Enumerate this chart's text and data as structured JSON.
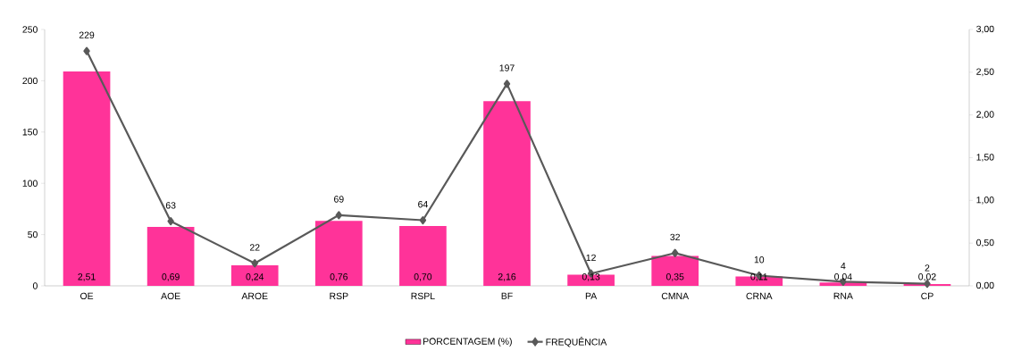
{
  "chart_data": {
    "type": "bar",
    "categories": [
      "OE",
      "AOE",
      "AROE",
      "RSP",
      "RSPL",
      "BF",
      "PA",
      "CMNA",
      "CRNA",
      "RNA",
      "CP"
    ],
    "series": [
      {
        "name": "PORCENTAGEM (%)",
        "axis": "y2",
        "color": "#ff3399",
        "values": [
          2.51,
          0.69,
          0.24,
          0.76,
          0.7,
          2.16,
          0.13,
          0.35,
          0.11,
          0.04,
          0.02
        ],
        "value_labels": [
          "2,51",
          "0,69",
          "0,24",
          "0,76",
          "0,70",
          "2,16",
          "0,13",
          "0,35",
          "0,11",
          "0,04",
          "0,02"
        ]
      },
      {
        "name": "FREQUÊNCIA",
        "type": "line",
        "axis": "y",
        "color": "#595959",
        "marker": "diamond",
        "line_style": "solid",
        "values": [
          229,
          63,
          22,
          69,
          64,
          197,
          12,
          32,
          10,
          4,
          2
        ],
        "value_labels": [
          "229",
          "63",
          "22",
          "69",
          "64",
          "197",
          "12",
          "32",
          "10",
          "4",
          "2"
        ]
      }
    ],
    "ylim": [
      0,
      250
    ],
    "yticks": [
      0,
      50,
      100,
      150,
      200,
      250
    ],
    "y2lim": [
      0,
      3
    ],
    "y2ticks": [
      {
        "value": 0,
        "label": "0,00"
      },
      {
        "value": 0.5,
        "label": "0,50"
      },
      {
        "value": 1,
        "label": "1,00"
      },
      {
        "value": 1.5,
        "label": "1,50"
      },
      {
        "value": 2,
        "label": "2,00"
      },
      {
        "value": 2.5,
        "label": "2,50"
      },
      {
        "value": 3,
        "label": "3,00"
      }
    ],
    "grid": false,
    "legend": "bottom"
  }
}
